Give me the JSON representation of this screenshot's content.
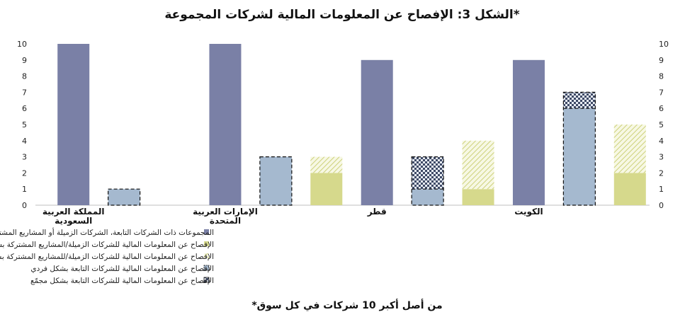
{
  "chart_data": {
    "type": "bar",
    "title": "الشكل 3: الإفصاح عن المعلومات المالية لشركات المجموعة*",
    "footnote": "*من أصل أكبر 10 شركات في كل سوق",
    "ylim": [
      0,
      10
    ],
    "yticks": [
      0,
      1,
      2,
      3,
      4,
      5,
      6,
      7,
      8,
      9,
      10
    ],
    "grid": false,
    "legend_position": "bottom",
    "categories": [
      [
        "المملكة العربية",
        "السعودية"
      ],
      [
        "الإمارات العربية",
        "المتحدة"
      ],
      [
        "قطر"
      ],
      [
        "الكويت"
      ]
    ],
    "series": [
      {
        "key": "groups",
        "name": "المجموعات ذات الشركات التابعة، الشركات الزميلة أو المشاريع المشتركة",
        "color": "#7a80a6",
        "pattern": "solid"
      },
      {
        "key": "assoc_ind",
        "name": "الإفصاح عن المعلومات المالية للشركات الزميلة/المشاريع المشتركة بشكل فردي",
        "color": "#d6d98c",
        "pattern": "solid"
      },
      {
        "key": "assoc_agg",
        "name": "الإفصاح عن المعلومات المالية للشركات الزميلة/للمشاريع المشتركة بشكل مجمّع",
        "color": "#e3e6a8",
        "pattern": "diagonal"
      },
      {
        "key": "subs_ind",
        "name": "الإفصاح عن المعلومات المالية للشركات التابعة بشكل فردي",
        "color": "#a5b9cf",
        "pattern": "dashed"
      },
      {
        "key": "subs_agg",
        "name": "الإفصاح عن المعلومات المالية للشركات التابعة بشكل مجمّع",
        "color": "#4f5b78",
        "pattern": "checker"
      }
    ],
    "bars": [
      {
        "category": 0,
        "stacks": [
          {
            "series": "groups",
            "value": 10
          }
        ]
      },
      {
        "category": 0,
        "stacks": [
          {
            "series": "subs_ind",
            "value": 1
          },
          {
            "series": "subs_agg",
            "value": 0
          }
        ]
      },
      {
        "category": 0,
        "stacks": [
          {
            "series": "assoc_ind",
            "value": 0
          },
          {
            "series": "assoc_agg",
            "value": 0
          }
        ]
      },
      {
        "category": 1,
        "stacks": [
          {
            "series": "groups",
            "value": 10
          }
        ]
      },
      {
        "category": 1,
        "stacks": [
          {
            "series": "subs_ind",
            "value": 3
          },
          {
            "series": "subs_agg",
            "value": 0
          }
        ]
      },
      {
        "category": 1,
        "stacks": [
          {
            "series": "assoc_ind",
            "value": 2
          },
          {
            "series": "assoc_agg",
            "value": 1
          }
        ]
      },
      {
        "category": 2,
        "stacks": [
          {
            "series": "groups",
            "value": 9
          }
        ]
      },
      {
        "category": 2,
        "stacks": [
          {
            "series": "subs_ind",
            "value": 1
          },
          {
            "series": "subs_agg",
            "value": 2
          }
        ]
      },
      {
        "category": 2,
        "stacks": [
          {
            "series": "assoc_ind",
            "value": 1
          },
          {
            "series": "assoc_agg",
            "value": 3
          }
        ]
      },
      {
        "category": 3,
        "stacks": [
          {
            "series": "groups",
            "value": 9
          }
        ]
      },
      {
        "category": 3,
        "stacks": [
          {
            "series": "subs_ind",
            "value": 6
          },
          {
            "series": "subs_agg",
            "value": 1
          }
        ]
      },
      {
        "category": 3,
        "stacks": [
          {
            "series": "assoc_ind",
            "value": 2
          },
          {
            "series": "assoc_agg",
            "value": 3
          }
        ]
      }
    ]
  }
}
